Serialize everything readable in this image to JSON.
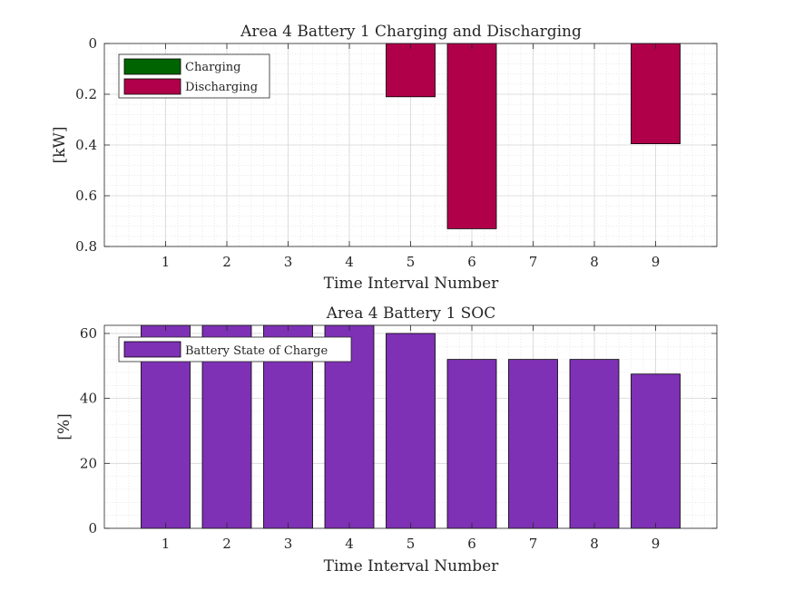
{
  "chart_data": [
    {
      "type": "bar",
      "title": "Area 4 Battery 1 Charging and Discharging",
      "xlabel": "Time Interval Number",
      "ylabel": "[kW]",
      "y_direction": "reversed",
      "categories": [
        "1",
        "2",
        "3",
        "4",
        "5",
        "6",
        "7",
        "8",
        "9"
      ],
      "xlim": [
        0,
        10
      ],
      "ylim": [
        0,
        0.8
      ],
      "yticks": [
        "0",
        "0.2",
        "0.4",
        "0.6",
        "0.8"
      ],
      "grid": true,
      "minor_grid": true,
      "legend_position": "top-left",
      "series": [
        {
          "name": "Charging",
          "color": "#006400",
          "values": [
            0,
            0,
            0,
            0,
            0,
            0,
            0,
            0,
            0
          ]
        },
        {
          "name": "Discharging",
          "color": "#B0004A",
          "values": [
            0,
            0,
            0,
            0,
            0.21,
            0.73,
            0,
            0,
            0.395
          ]
        }
      ]
    },
    {
      "type": "bar",
      "title": "Area 4 Battery 1 SOC",
      "xlabel": "Time Interval Number",
      "ylabel": "[%]",
      "categories": [
        "1",
        "2",
        "3",
        "4",
        "5",
        "6",
        "7",
        "8",
        "9"
      ],
      "xlim": [
        0,
        10
      ],
      "ylim": [
        0,
        62.5
      ],
      "yticks": [
        "0",
        "20",
        "40",
        "60"
      ],
      "grid": true,
      "minor_grid": true,
      "legend_position": "top-left",
      "series": [
        {
          "name": "Battery State of Charge",
          "color": "#7E31B5",
          "values": [
            62.5,
            62.5,
            62.5,
            62.5,
            60,
            52,
            52,
            52,
            47.5
          ]
        }
      ]
    }
  ]
}
